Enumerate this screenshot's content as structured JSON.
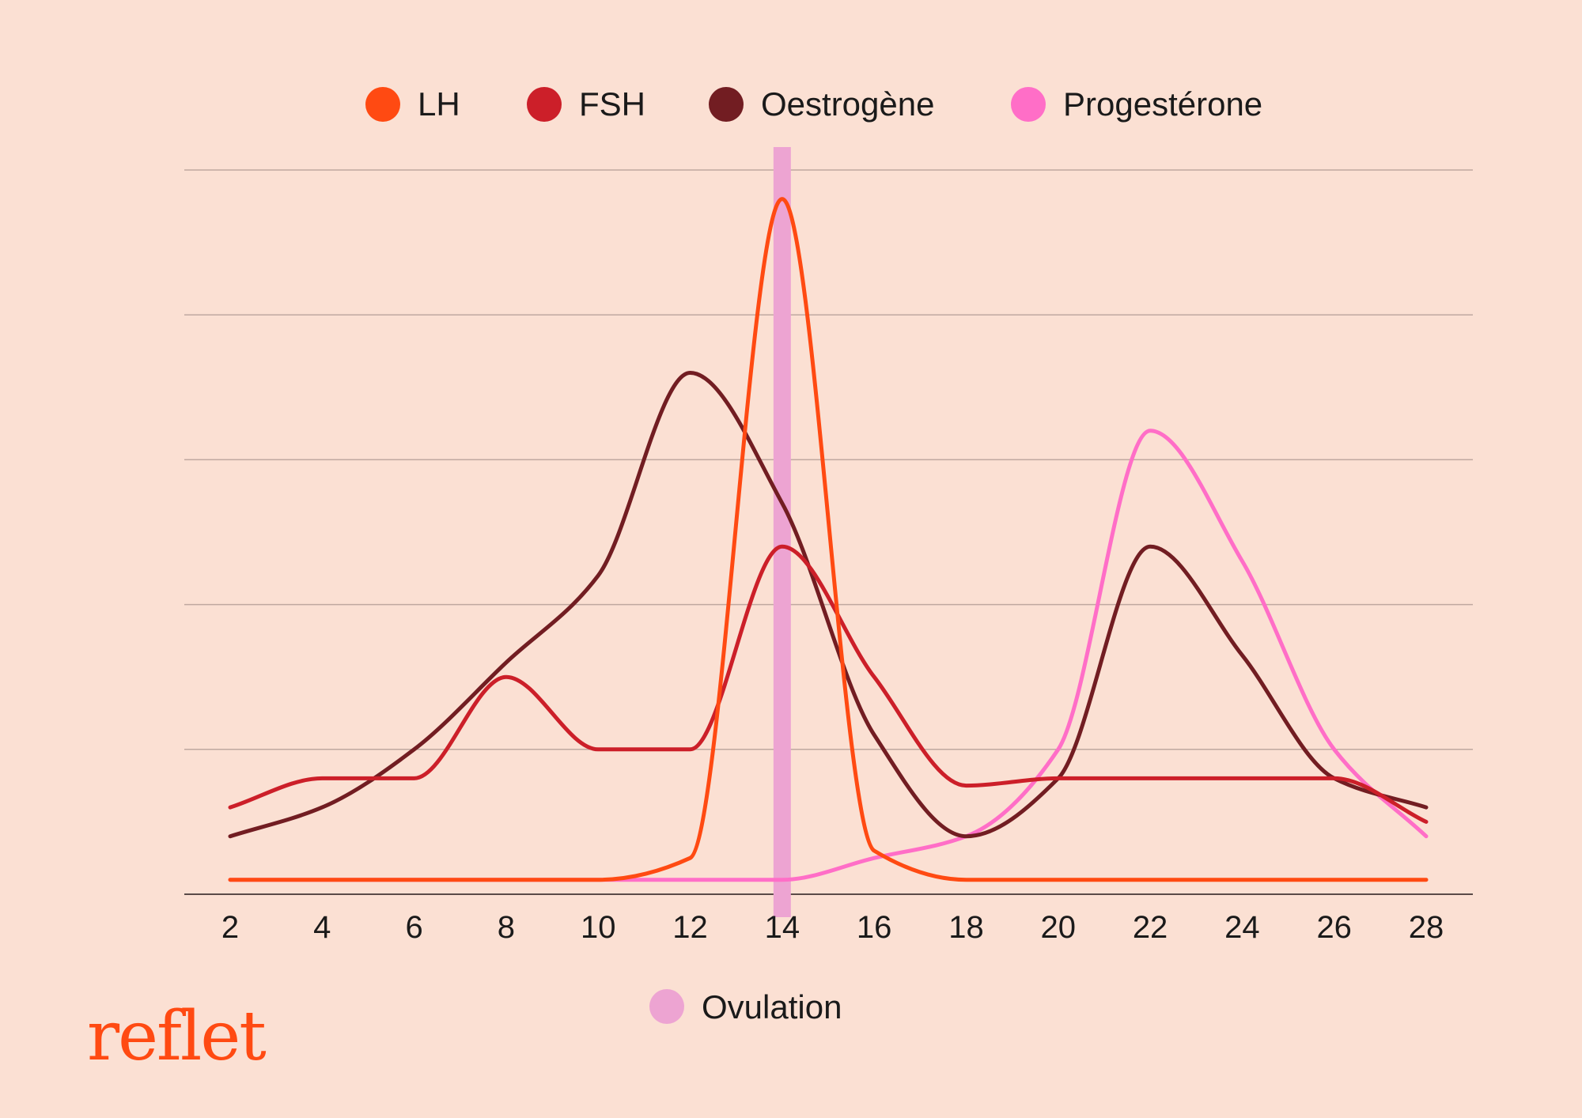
{
  "chart_data": {
    "type": "line",
    "x": [
      2,
      4,
      6,
      8,
      10,
      12,
      14,
      16,
      18,
      20,
      22,
      24,
      26,
      28
    ],
    "xlim": [
      2,
      28
    ],
    "ylim": [
      0,
      10
    ],
    "grid": true,
    "legend_placement": "top",
    "series": [
      {
        "name": "LH",
        "color": "#ff4a12",
        "values": [
          0.2,
          0.2,
          0.2,
          0.2,
          0.2,
          0.5,
          9.6,
          0.6,
          0.2,
          0.2,
          0.2,
          0.2,
          0.2,
          0.2
        ]
      },
      {
        "name": "FSH",
        "color": "#cc1f29",
        "values": [
          1.2,
          1.6,
          1.6,
          3.0,
          2.0,
          2.0,
          4.8,
          3.0,
          1.5,
          1.6,
          1.6,
          1.6,
          1.6,
          1.0
        ]
      },
      {
        "name": "Oestrogène",
        "color": "#721d22",
        "values": [
          0.8,
          1.2,
          2.0,
          3.2,
          4.4,
          7.2,
          5.4,
          2.2,
          0.8,
          1.6,
          4.8,
          3.3,
          1.6,
          1.2
        ]
      },
      {
        "name": "Progestérone",
        "color": "#ff6ec7",
        "values": [
          0.2,
          0.2,
          0.2,
          0.2,
          0.2,
          0.2,
          0.2,
          0.5,
          0.8,
          2.0,
          6.4,
          4.6,
          2.0,
          0.8
        ]
      }
    ],
    "annotations": [
      {
        "label": "Ovulation",
        "x": 14,
        "color": "#eda4d2"
      }
    ]
  },
  "branding": {
    "logo_text": "reflet"
  }
}
